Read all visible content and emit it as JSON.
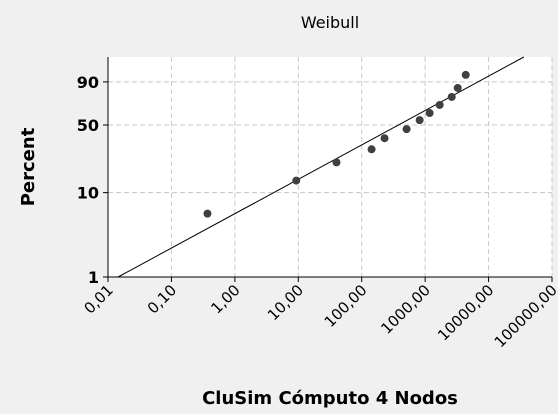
{
  "chart_data": {
    "type": "probability-scatter",
    "title": "Weibull",
    "xlabel": "CluSim Cómputo 4 Nodos",
    "ylabel": "Percent",
    "x": [
      0.37,
      9.3,
      40,
      143,
      229,
      510,
      819,
      1178,
      1694,
      2624,
      3260,
      4365
    ],
    "values": [
      5.7,
      13.7,
      21.7,
      29.7,
      38.1,
      46.1,
      54.8,
      62.0,
      70.2,
      78.0,
      85.7,
      93.9
    ],
    "color": "#404040",
    "fit": {
      "x": [
        0.0144,
        36000
      ],
      "y": [
        1,
        99
      ],
      "color": "#000000"
    },
    "xscale": "log",
    "yscale": "weibull",
    "xlim": [
      0.01,
      100000
    ],
    "ylim": [
      1,
      99
    ],
    "xticks": [
      {
        "value": 0.01,
        "label": "0,01"
      },
      {
        "value": 0.1,
        "label": "0,10"
      },
      {
        "value": 1,
        "label": "1,00"
      },
      {
        "value": 10,
        "label": "10,00"
      },
      {
        "value": 100,
        "label": "100,00"
      },
      {
        "value": 1000,
        "label": "1000,00"
      },
      {
        "value": 10000,
        "label": "10000,00"
      },
      {
        "value": 100000,
        "label": "100000,00"
      }
    ],
    "yticks": [
      1,
      10,
      50,
      90
    ],
    "grid": true
  }
}
